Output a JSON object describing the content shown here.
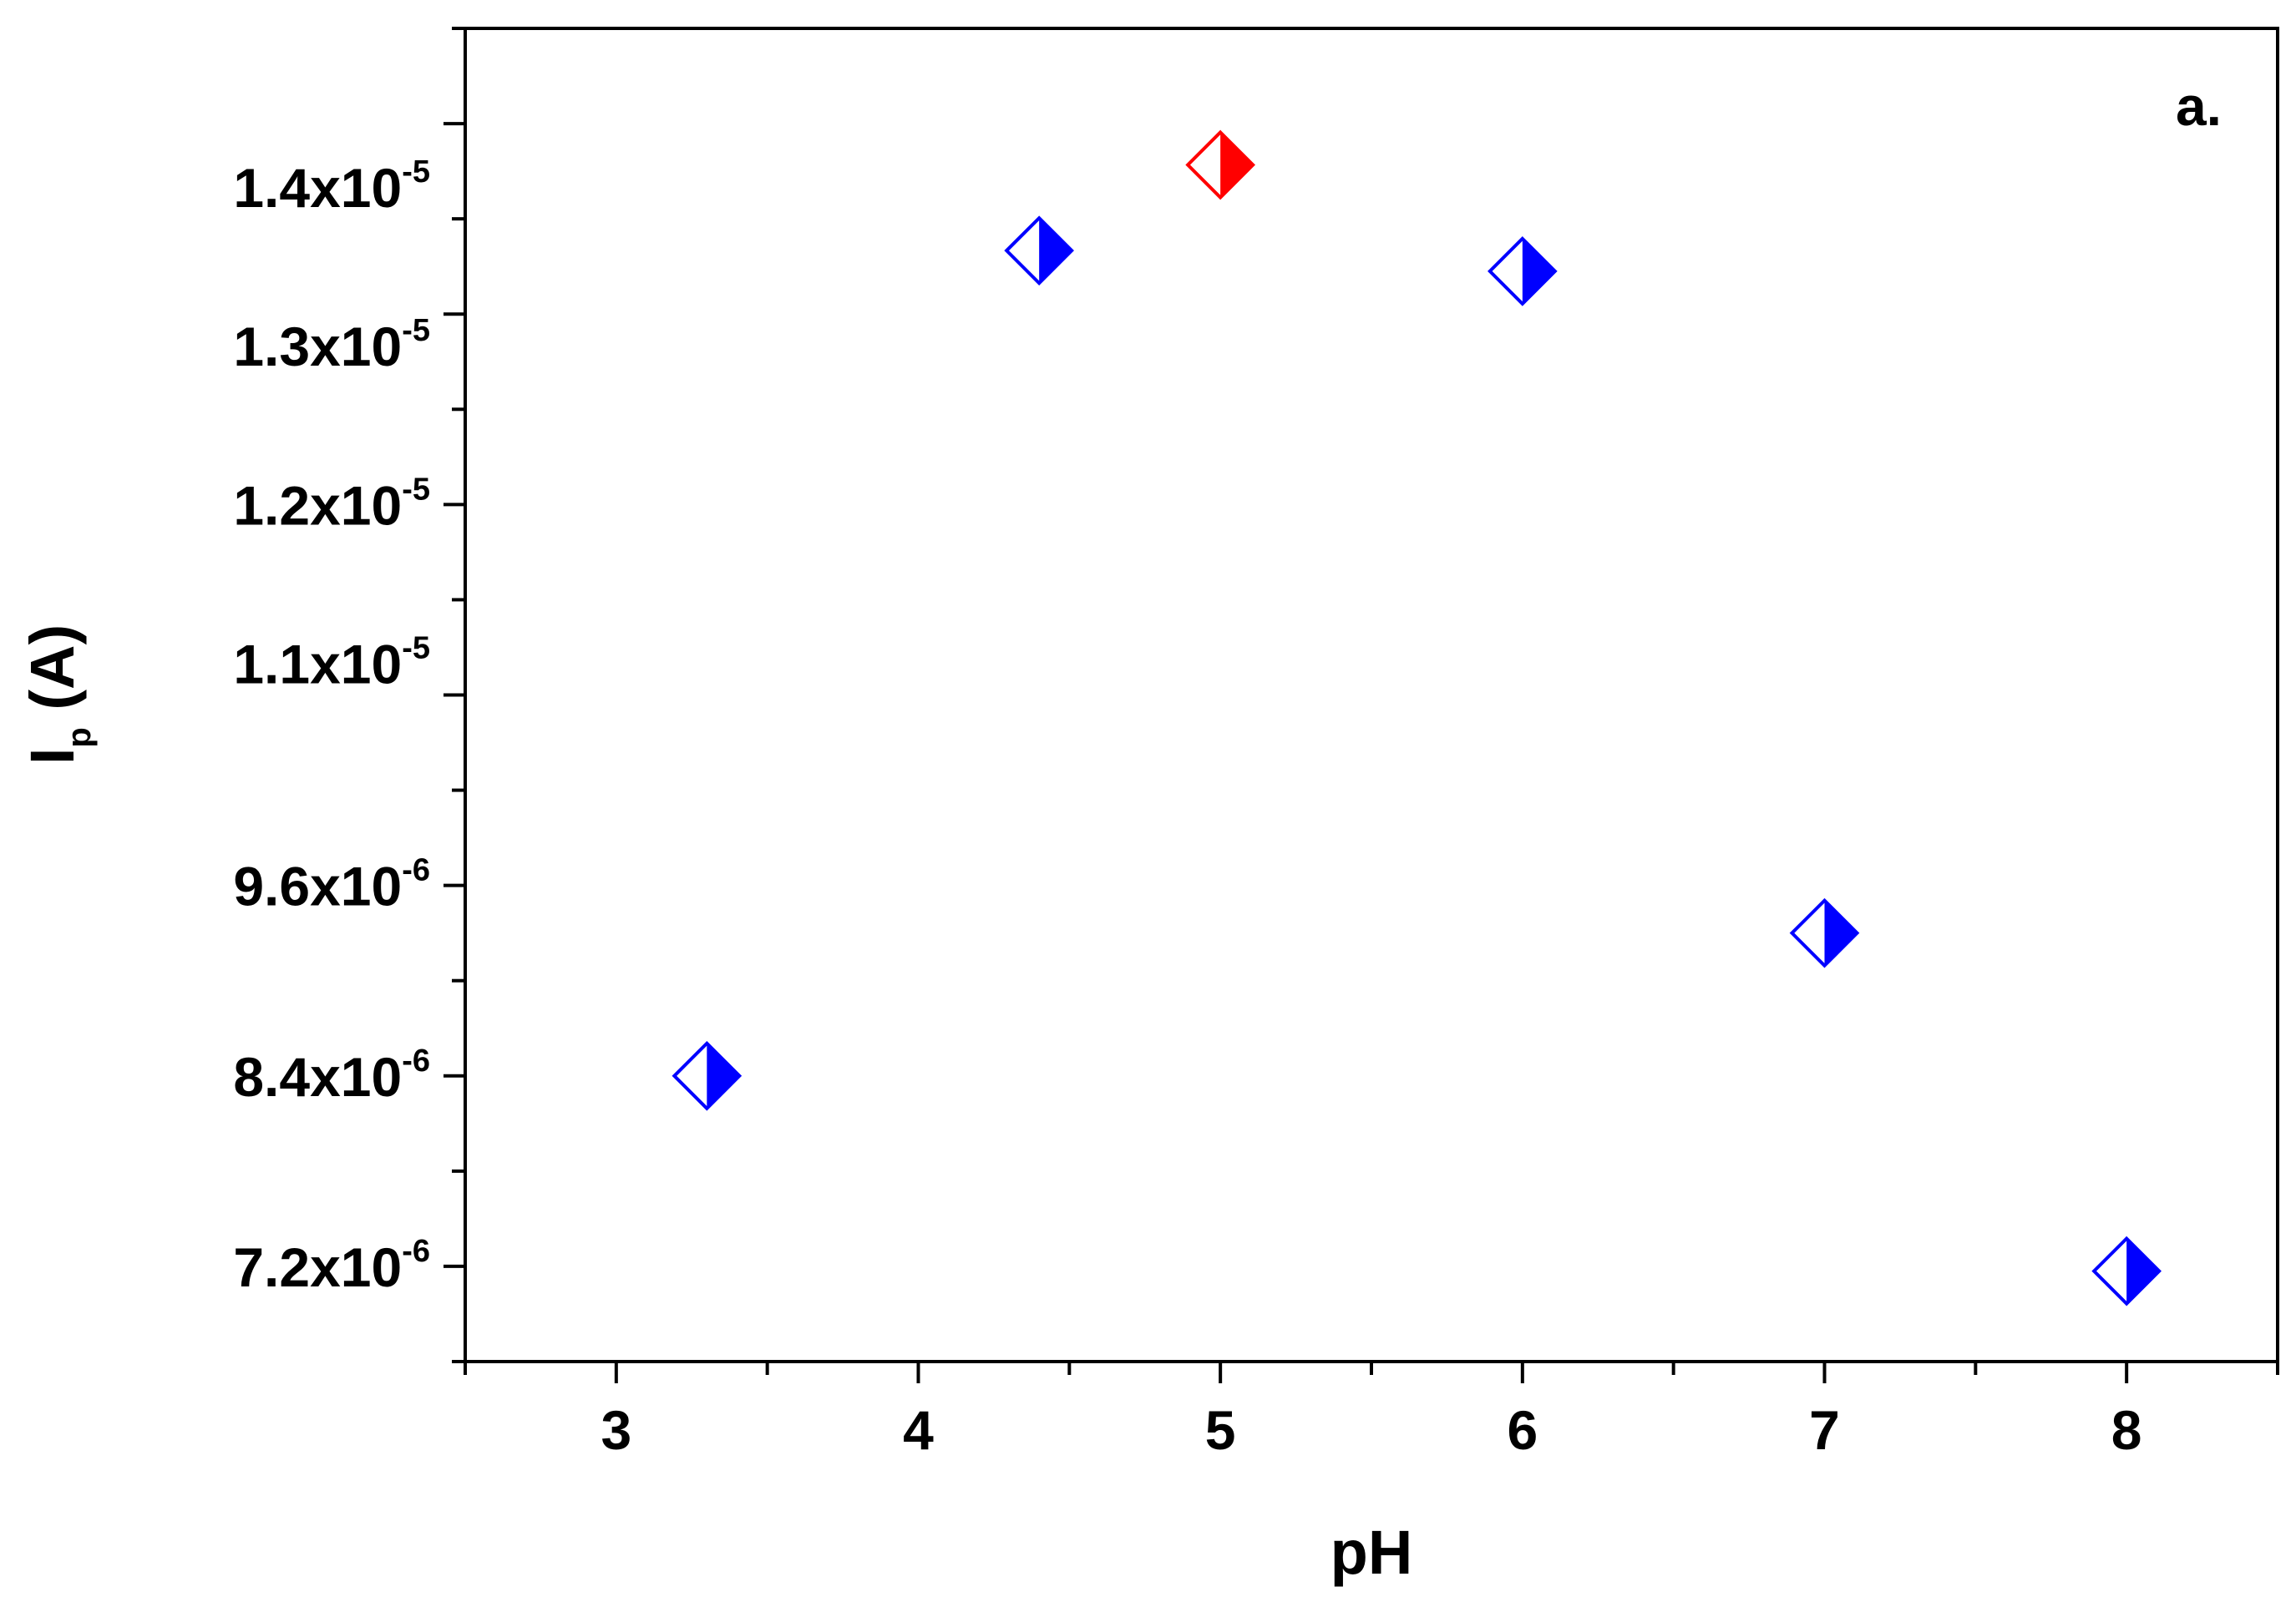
{
  "chart_data": {
    "type": "scatter",
    "panel_label": "a.",
    "xlabel": "pH",
    "ylabel": {
      "main": "I",
      "subscript": "p",
      "unit": " (A)"
    },
    "xlim": [
      2.5,
      8.5
    ],
    "ylim": [
      6.6e-06,
      1.5e-05
    ],
    "x_ticks": [
      {
        "value": 3,
        "label": "3"
      },
      {
        "value": 4,
        "label": "4"
      },
      {
        "value": 5,
        "label": "5"
      },
      {
        "value": 6,
        "label": "6"
      },
      {
        "value": 7,
        "label": "7"
      },
      {
        "value": 8,
        "label": "8"
      }
    ],
    "y_ticks": [
      {
        "value": 7.2e-06,
        "mantissa": "7.2x10",
        "exponent": "-6"
      },
      {
        "value": 8.4e-06,
        "mantissa": "8.4x10",
        "exponent": "-6"
      },
      {
        "value": 9.6e-06,
        "mantissa": "9.6x10",
        "exponent": "-6"
      },
      {
        "value": 1.1e-05,
        "mantissa": "1.1x10",
        "exponent": "-5"
      },
      {
        "value": 1.2e-05,
        "mantissa": "1.2x10",
        "exponent": "-5"
      },
      {
        "value": 1.3e-05,
        "mantissa": "1.3x10",
        "exponent": "-5"
      },
      {
        "value": 1.4e-05,
        "mantissa": "1.4x10",
        "exponent": "-5"
      }
    ],
    "points": [
      {
        "x": 3.3,
        "y": 8.4e-06,
        "color": "#0000ff"
      },
      {
        "x": 4.4,
        "y": 1.36e-05,
        "color": "#0000ff"
      },
      {
        "x": 5.0,
        "y": 1.414e-05,
        "color": "#ff0000"
      },
      {
        "x": 6.0,
        "y": 1.347e-05,
        "color": "#0000ff"
      },
      {
        "x": 7.0,
        "y": 9.3e-06,
        "color": "#0000ff"
      },
      {
        "x": 8.0,
        "y": 7.17e-06,
        "color": "#0000ff"
      }
    ],
    "marker": "half-filled-diamond-right",
    "grid": false,
    "legend": "none"
  }
}
